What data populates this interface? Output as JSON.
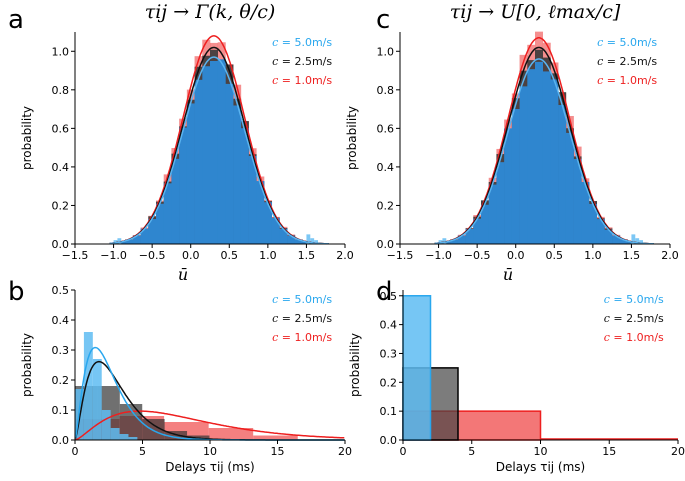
{
  "colors": {
    "c5": "#29a7ee",
    "c25": "#111111",
    "c1": "#ee1f1f",
    "hist_main": "#2f86cf"
  },
  "legend": [
    {
      "sym": "c",
      "text": " = 5.0m/s",
      "color": "#29a7ee"
    },
    {
      "sym": "c",
      "text": " = 2.5m/s",
      "color": "#111111"
    },
    {
      "sym": "c",
      "text": " = 1.0m/s",
      "color": "#ee1f1f"
    }
  ],
  "chart_data": [
    {
      "panel": "a",
      "type": "histogram-with-fits",
      "title": "τij → Γ(k, θ/c)",
      "xlabel": "ū",
      "ylabel": "probability",
      "xlim": [
        -1.5,
        2.0
      ],
      "ylim": [
        0,
        1.1
      ],
      "xticks": [
        "−1.5",
        "−1.0",
        "−0.5",
        "0.0",
        "0.5",
        "1.0",
        "1.5",
        "2.0"
      ],
      "yticks": [
        "0.0",
        "0.2",
        "0.4",
        "0.6",
        "0.8",
        "1.0"
      ],
      "series": [
        {
          "name": "c = 1.0m/s",
          "mean": 0.3,
          "peak": 1.08
        },
        {
          "name": "c = 2.5m/s",
          "mean": 0.3,
          "peak": 1.02
        },
        {
          "name": "c = 5.0m/s",
          "mean": 0.3,
          "peak": 0.97
        }
      ]
    },
    {
      "panel": "c",
      "type": "histogram-with-fits",
      "title": "τij → U[0, ℓmax/c]",
      "xlabel": "ū",
      "ylabel": "probability",
      "xlim": [
        -1.5,
        2.0
      ],
      "ylim": [
        0,
        1.1
      ],
      "xticks": [
        "−1.5",
        "−1.0",
        "−0.5",
        "0.0",
        "0.5",
        "1.0",
        "1.5",
        "2.0"
      ],
      "yticks": [
        "0.0",
        "0.2",
        "0.4",
        "0.6",
        "0.8",
        "1.0"
      ],
      "series": [
        {
          "name": "c = 1.0m/s",
          "mean": 0.3,
          "peak": 1.07
        },
        {
          "name": "c = 2.5m/s",
          "mean": 0.3,
          "peak": 1.02
        },
        {
          "name": "c = 5.0m/s",
          "mean": 0.3,
          "peak": 0.96
        }
      ]
    },
    {
      "panel": "b",
      "type": "histogram-with-fits",
      "xlabel": "Delays τij (ms)",
      "ylabel": "probability",
      "xlim": [
        0,
        20
      ],
      "ylim": [
        0,
        0.5
      ],
      "xticks": [
        "0",
        "5",
        "10",
        "15",
        "20"
      ],
      "yticks": [
        "0.0",
        "0.1",
        "0.2",
        "0.3",
        "0.4",
        "0.5"
      ],
      "series": [
        {
          "name": "c = 5.0m/s",
          "bin_width": 0.66,
          "values": [
            0.17,
            0.36,
            0.27,
            0.1,
            0.04,
            0.02,
            0.01
          ],
          "fit_gamma": {
            "k": 2.5,
            "theta": 1.0
          }
        },
        {
          "name": "c = 2.5m/s",
          "bin_width": 1.66,
          "values": [
            0.18,
            0.18,
            0.12,
            0.07,
            0.03,
            0.015
          ],
          "fit_gamma": {
            "k": 2.5,
            "theta": 1.18
          }
        },
        {
          "name": "c = 1.0m/s",
          "bin_width": 3.3,
          "values": [
            0.07,
            0.08,
            0.06,
            0.04,
            0.015
          ],
          "fit_gamma": {
            "k": 2.5,
            "theta": 3.2
          }
        }
      ]
    },
    {
      "panel": "d",
      "type": "histogram-with-fits",
      "xlabel": "Delays τij (ms)",
      "ylabel": "probability",
      "xlim": [
        0,
        20
      ],
      "ylim": [
        0,
        0.52
      ],
      "xticks": [
        "0",
        "5",
        "10",
        "15",
        "20"
      ],
      "yticks": [
        "0.0",
        "0.1",
        "0.2",
        "0.3",
        "0.4",
        "0.5"
      ],
      "series": [
        {
          "name": "c = 5.0m/s",
          "range": [
            0,
            2
          ],
          "value": 0.5
        },
        {
          "name": "c = 2.5m/s",
          "range": [
            0,
            4
          ],
          "value": 0.25
        },
        {
          "name": "c = 1.0m/s",
          "range": [
            0,
            10
          ],
          "value": 0.1
        }
      ]
    }
  ]
}
